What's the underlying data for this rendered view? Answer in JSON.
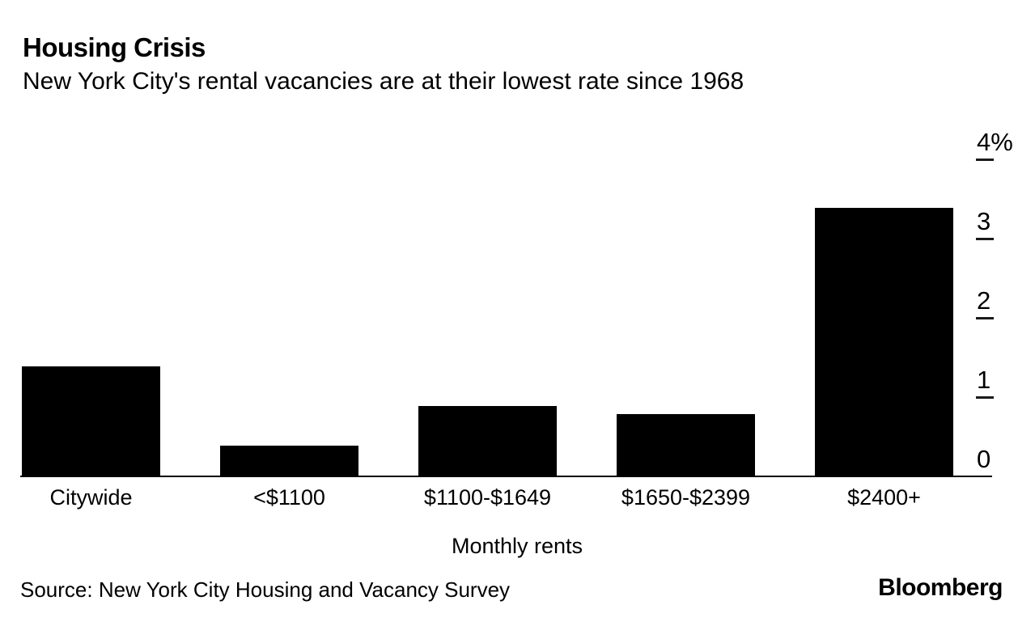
{
  "header": {
    "title": "Housing Crisis",
    "subtitle": "New York City's rental vacancies are at their lowest rate since 1968"
  },
  "chart_data": {
    "type": "bar",
    "title": "Housing Crisis",
    "subtitle": "New York City's rental vacancies are at their lowest rate since 1968",
    "categories": [
      "Citywide",
      "<$1100",
      "$1100-$1649",
      "$1650-$2399",
      "$2400+"
    ],
    "values": [
      1.4,
      0.4,
      0.9,
      0.8,
      3.4
    ],
    "xlabel": "Monthly rents",
    "ylabel": "",
    "unit": "%",
    "ylim": [
      0,
      4
    ],
    "yticks": [
      0,
      1,
      2,
      3,
      4
    ],
    "ytick_labels": [
      "0",
      "1",
      "2",
      "3",
      "4%"
    ],
    "axis_side": "right",
    "grid": false,
    "legend_position": "none",
    "bar_color": "#000000"
  },
  "footer": {
    "source": "Source: New York City Housing and Vacancy Survey",
    "brand": "Bloomberg"
  },
  "colors": {
    "background": "#ffffff",
    "text": "#000000",
    "bar": "#000000",
    "axis": "#000000"
  }
}
